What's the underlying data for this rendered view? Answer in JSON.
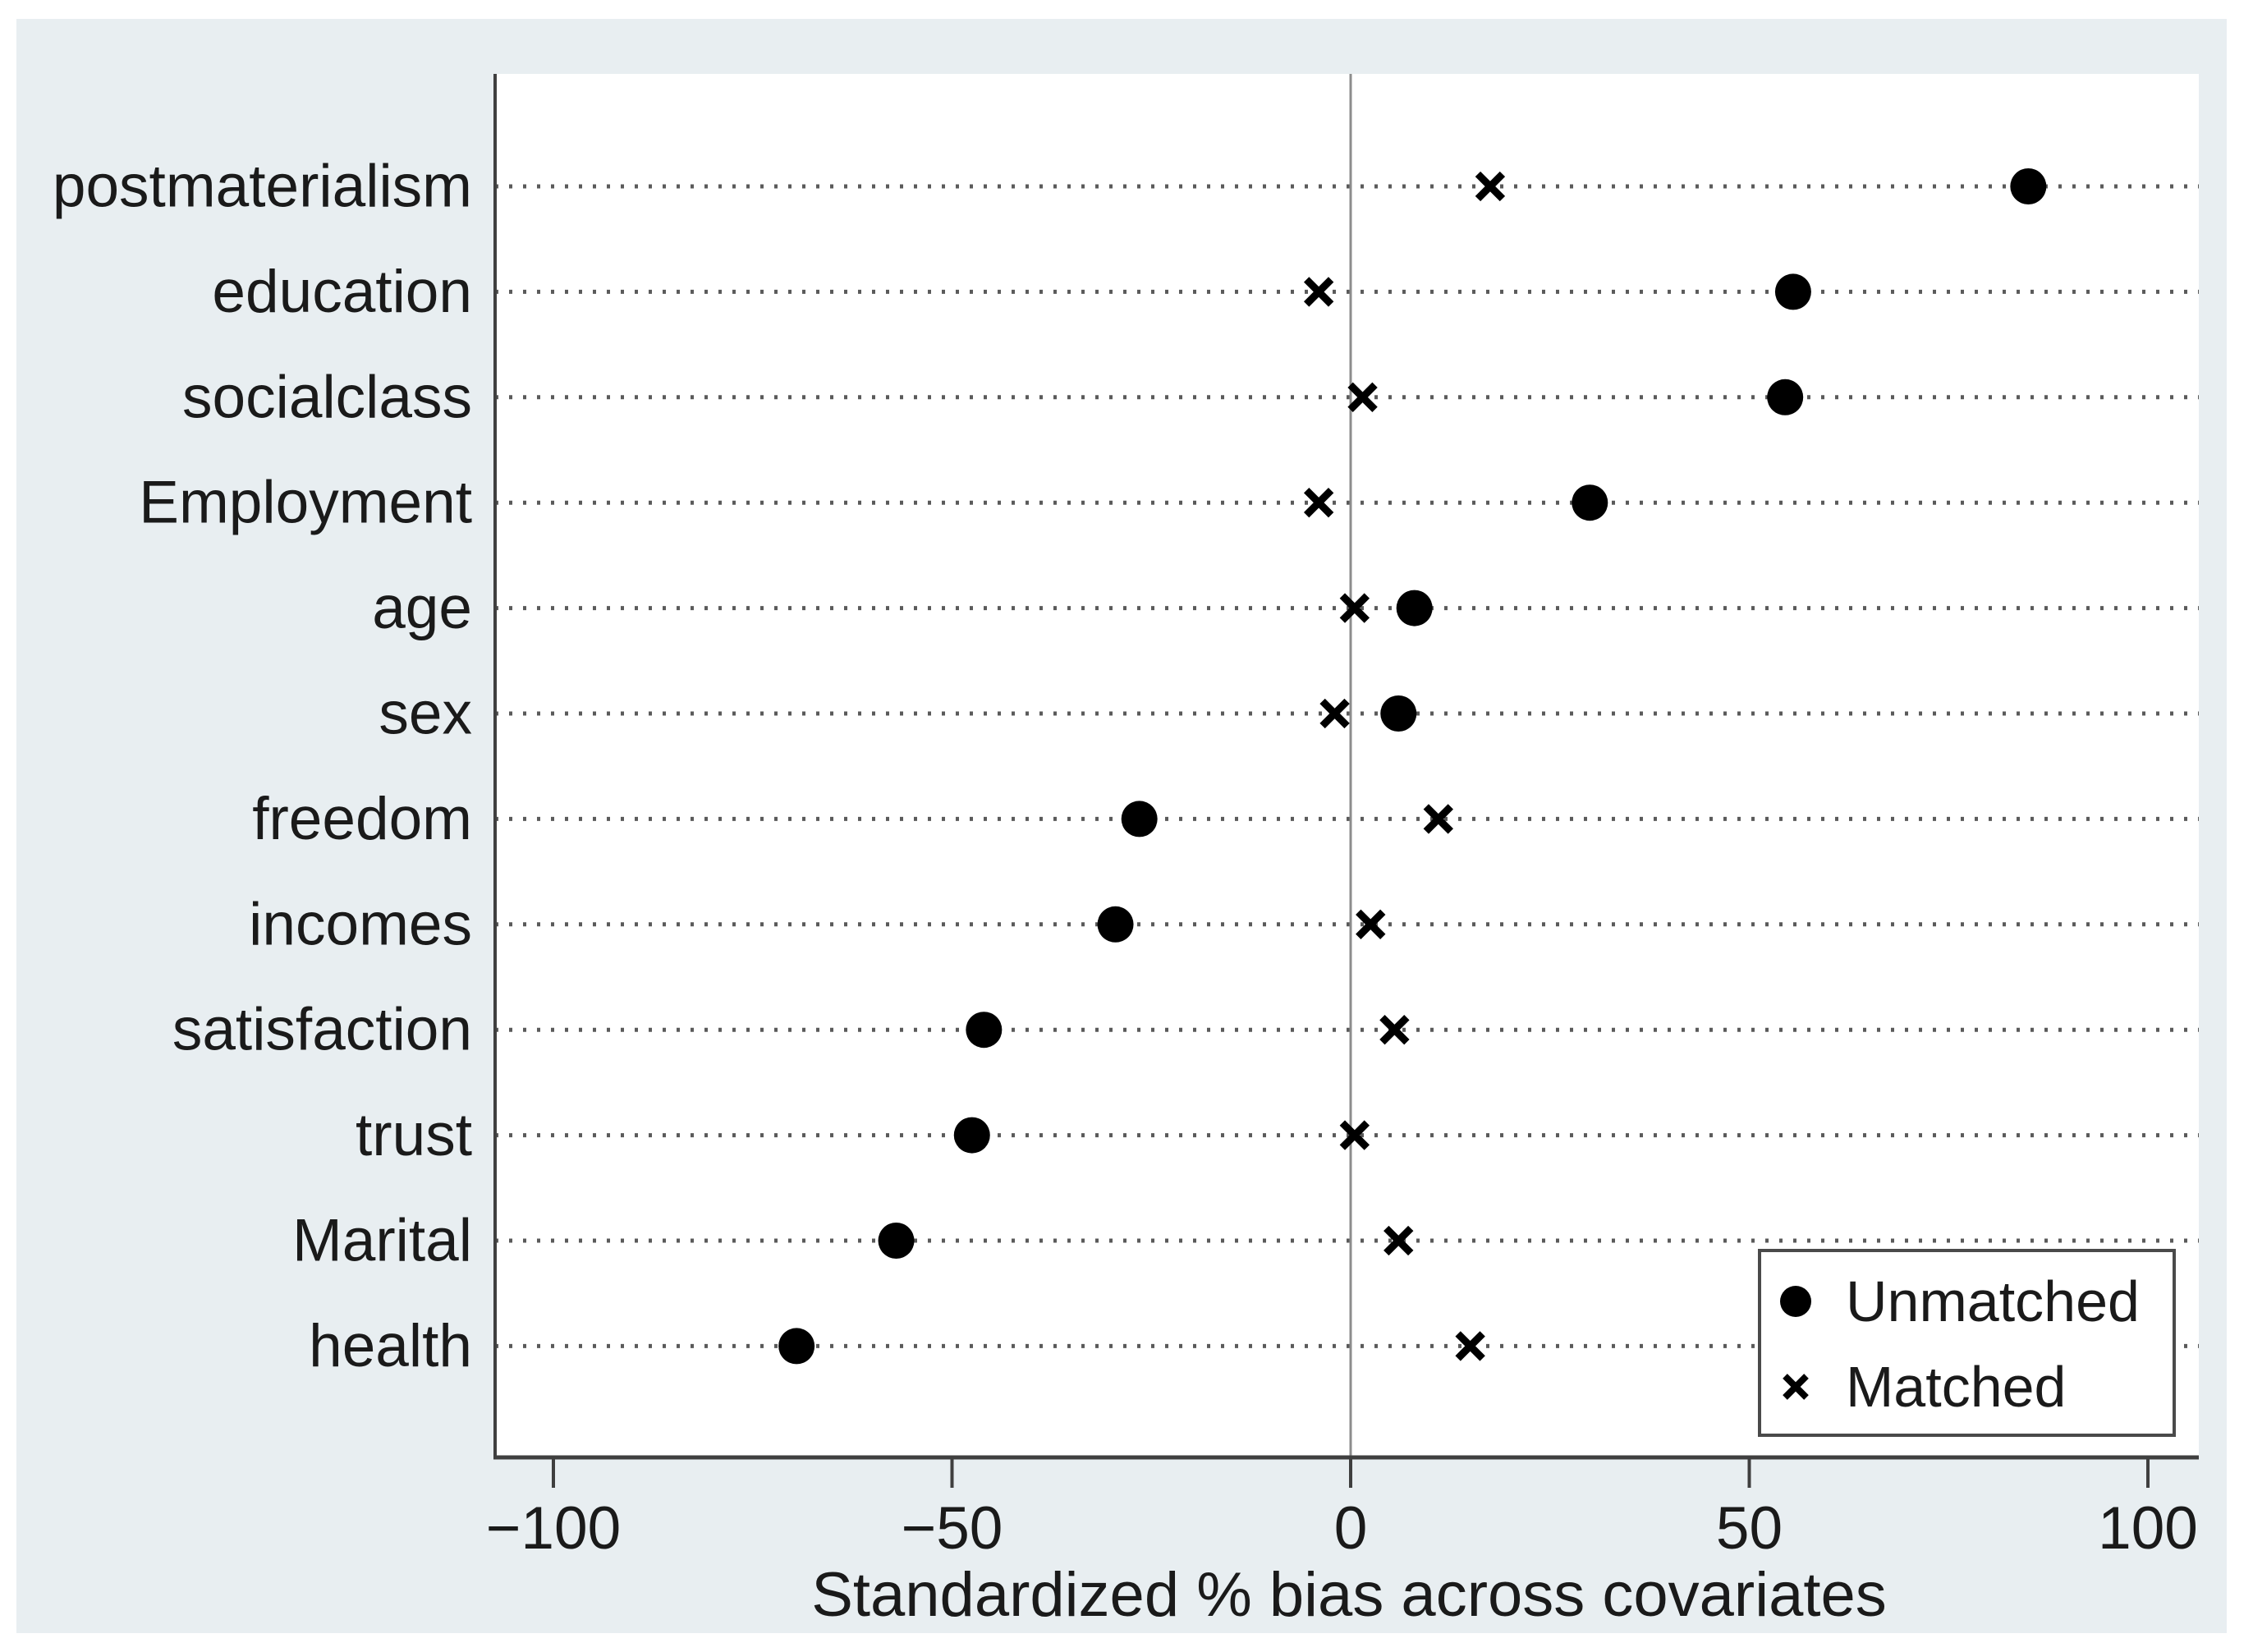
{
  "chart_data": {
    "type": "scatter",
    "title": "",
    "xlabel": "Standardized % bias across covariates",
    "ylabel": "",
    "categories": [
      "postmaterialism",
      "education",
      "socialclass",
      "Employment",
      "age",
      "sex",
      "freedom",
      "incomes",
      "satisfaction",
      "trust",
      "Marital",
      "health"
    ],
    "series": [
      {
        "name": "Unmatched",
        "marker": "circle",
        "values": [
          85,
          55.5,
          54.5,
          30,
          8,
          6,
          -26.5,
          -29.5,
          -46,
          -47.5,
          -57,
          -69.5
        ]
      },
      {
        "name": "Matched",
        "marker": "x",
        "values": [
          17.5,
          -4,
          1.5,
          -4,
          0.5,
          -2,
          11,
          2.5,
          5.5,
          0.5,
          6,
          15
        ]
      }
    ],
    "x_ticks": [
      -100,
      -50,
      0,
      50,
      100
    ],
    "x_tick_labels": [
      "−100",
      "−50",
      "0",
      "50",
      "100"
    ],
    "xlim": [
      -107,
      107
    ],
    "grid": "horizontal-dotted-per-category",
    "reference_line_x": 0,
    "legend_position": "bottom-right"
  },
  "legend": {
    "items": [
      {
        "label": "Unmatched",
        "marker": "circle"
      },
      {
        "label": "Matched",
        "marker": "x"
      }
    ]
  },
  "colors": {
    "figure_bg": "#e8eef1",
    "plot_bg": "#ffffff",
    "axis_line": "#3f3f3f",
    "zero_line": "#8c8c8c",
    "grid_dot": "#5a5a5a",
    "marker": "#000000",
    "text": "#1a1a1a",
    "legend_border": "#4a4a4a",
    "legend_bg": "#ffffff"
  }
}
